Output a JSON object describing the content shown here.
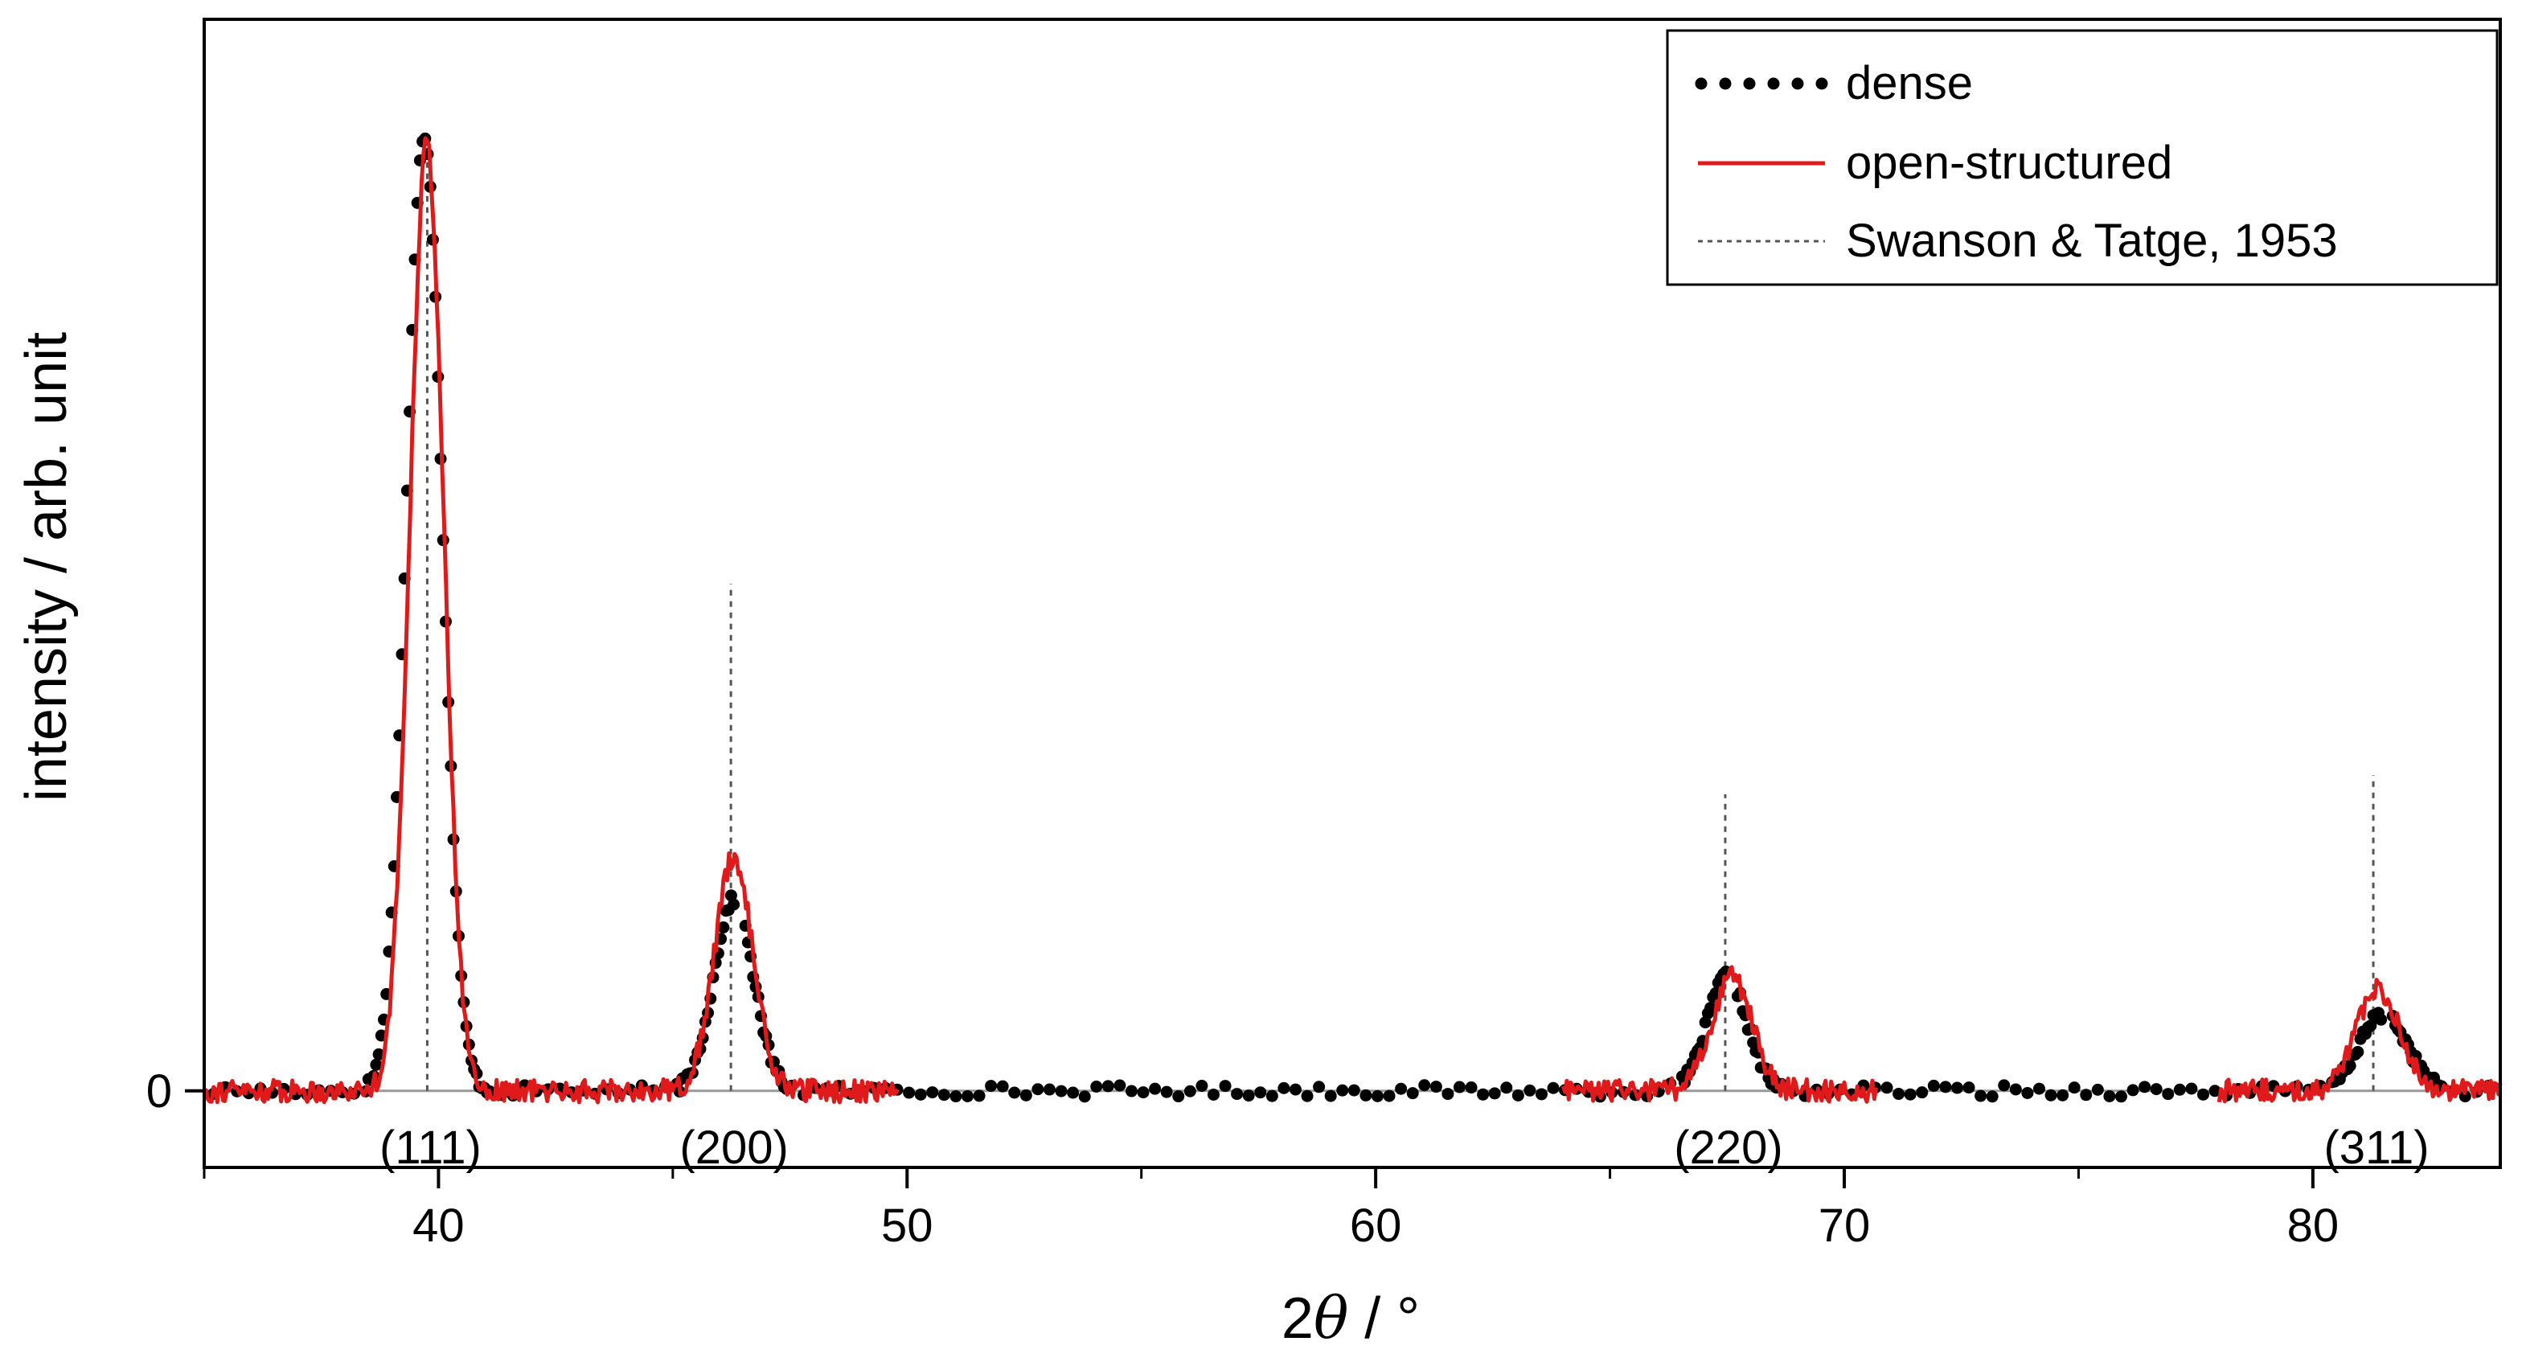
{
  "chart_data": {
    "type": "line",
    "title": "",
    "xlabel": {
      "prefix": "2",
      "symbol": "θ",
      "suffix": " / °"
    },
    "ylabel": "intensity / arb. unit",
    "xlim": [
      35,
      84
    ],
    "ylim": [
      -0.08,
      1.12
    ],
    "xticks": [
      40,
      50,
      60,
      70,
      80
    ],
    "xtick_labels": [
      "40",
      "50",
      "60",
      "70",
      "80"
    ],
    "xminor_ticks": [
      35,
      45,
      55,
      65,
      75
    ],
    "yticks": [
      0
    ],
    "ytick_labels": [
      "0"
    ],
    "grid": false,
    "legend_position": "top-right",
    "series": [
      {
        "name": "dense",
        "style": "dotted-markers",
        "color": "#000000",
        "x_range": [
          35.2,
          84
        ],
        "noise_amplitude": 0.006,
        "peaks": [
          {
            "center": 39.7,
            "height": 1.0,
            "fwhm": 0.9
          },
          {
            "center": 46.3,
            "height": 0.2,
            "fwhm": 1.0
          },
          {
            "center": 67.5,
            "height": 0.12,
            "fwhm": 1.0
          },
          {
            "center": 81.5,
            "height": 0.08,
            "fwhm": 1.2
          }
        ]
      },
      {
        "name": "open-structured",
        "style": "solid-line",
        "color": "#e01a1a",
        "x_ranges": [
          [
            35,
            49.8
          ],
          [
            64,
            70.7
          ],
          [
            78,
            84
          ]
        ],
        "noise_amplitude": 0.012,
        "peaks": [
          {
            "center": 39.75,
            "height": 0.99,
            "fwhm": 0.85
          },
          {
            "center": 46.3,
            "height": 0.245,
            "fwhm": 0.95
          },
          {
            "center": 67.6,
            "height": 0.12,
            "fwhm": 1.0
          },
          {
            "center": 81.4,
            "height": 0.105,
            "fwhm": 1.1
          }
        ]
      },
      {
        "name": "Swanson & Tatge, 1953",
        "style": "reference-sticks",
        "color": "#555555",
        "sticks": [
          {
            "x": 39.76,
            "height": 1.0
          },
          {
            "x": 46.24,
            "height": 0.53
          },
          {
            "x": 67.46,
            "height": 0.31
          },
          {
            "x": 81.29,
            "height": 0.33
          }
        ]
      }
    ],
    "annotations": [
      {
        "text": "(111)",
        "x": 39.76
      },
      {
        "text": "(200)",
        "x": 46.24
      },
      {
        "text": "(220)",
        "x": 67.46
      },
      {
        "text": "(311)",
        "x": 81.29
      }
    ]
  }
}
